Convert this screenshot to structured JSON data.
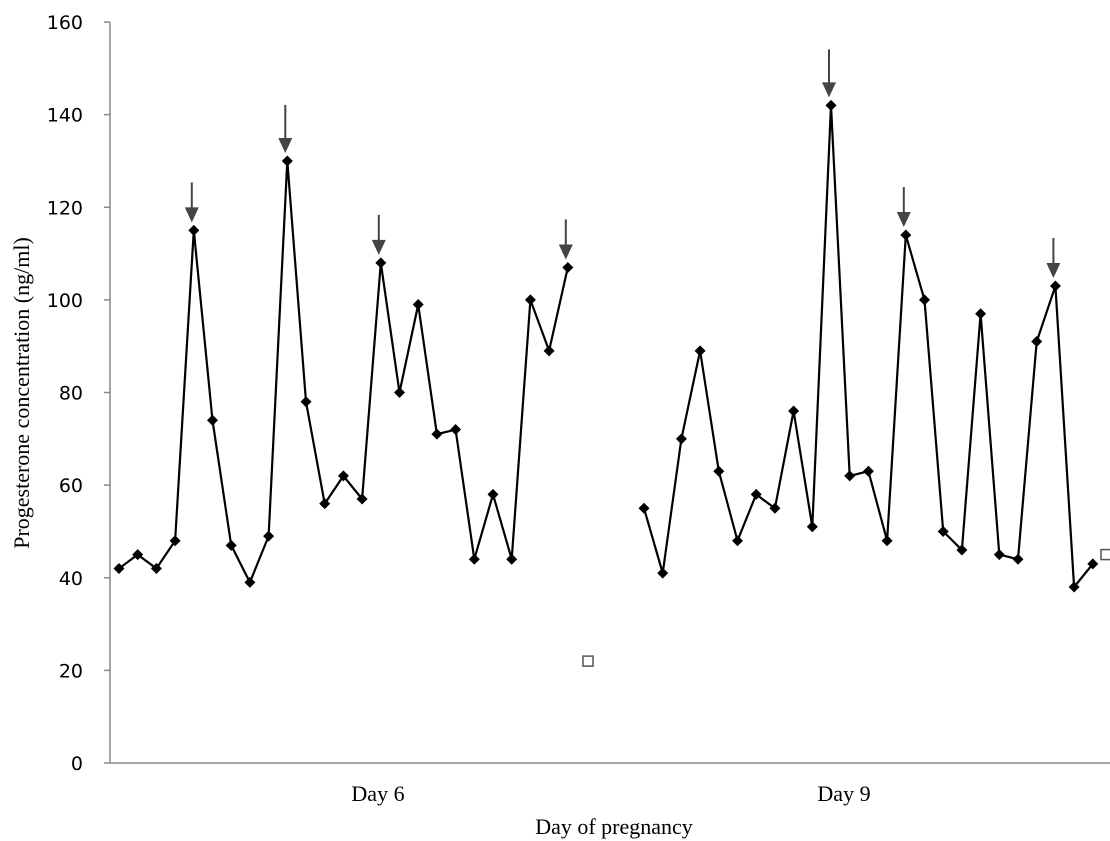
{
  "chart_data": {
    "type": "line",
    "title": "",
    "xlabel": "Day of pregnancy",
    "ylabel": "Progesterone concentration (ng/ml)",
    "ylim": [
      0,
      160
    ],
    "yticks": [
      "0",
      "20",
      "40",
      "60",
      "80",
      "100",
      "120",
      "140",
      "160"
    ],
    "grid": false,
    "legend": "none",
    "groups": [
      {
        "label": "Day 6",
        "values": [
          42,
          45,
          42,
          48,
          115,
          74,
          47,
          39,
          49,
          130,
          78,
          56,
          62,
          57,
          108,
          80,
          99,
          71,
          72,
          44,
          58,
          44,
          100,
          89,
          107
        ],
        "pulse_indices": [
          4,
          9,
          14,
          24
        ],
        "open_point": 22
      },
      {
        "label": "Day 9",
        "values": [
          55,
          41,
          70,
          89,
          63,
          48,
          58,
          55,
          76,
          51,
          142,
          62,
          63,
          48,
          114,
          100,
          50,
          46,
          97,
          45,
          44,
          91,
          103,
          38,
          43
        ],
        "pulse_indices": [
          10,
          14,
          22
        ],
        "open_point": 45
      }
    ]
  }
}
